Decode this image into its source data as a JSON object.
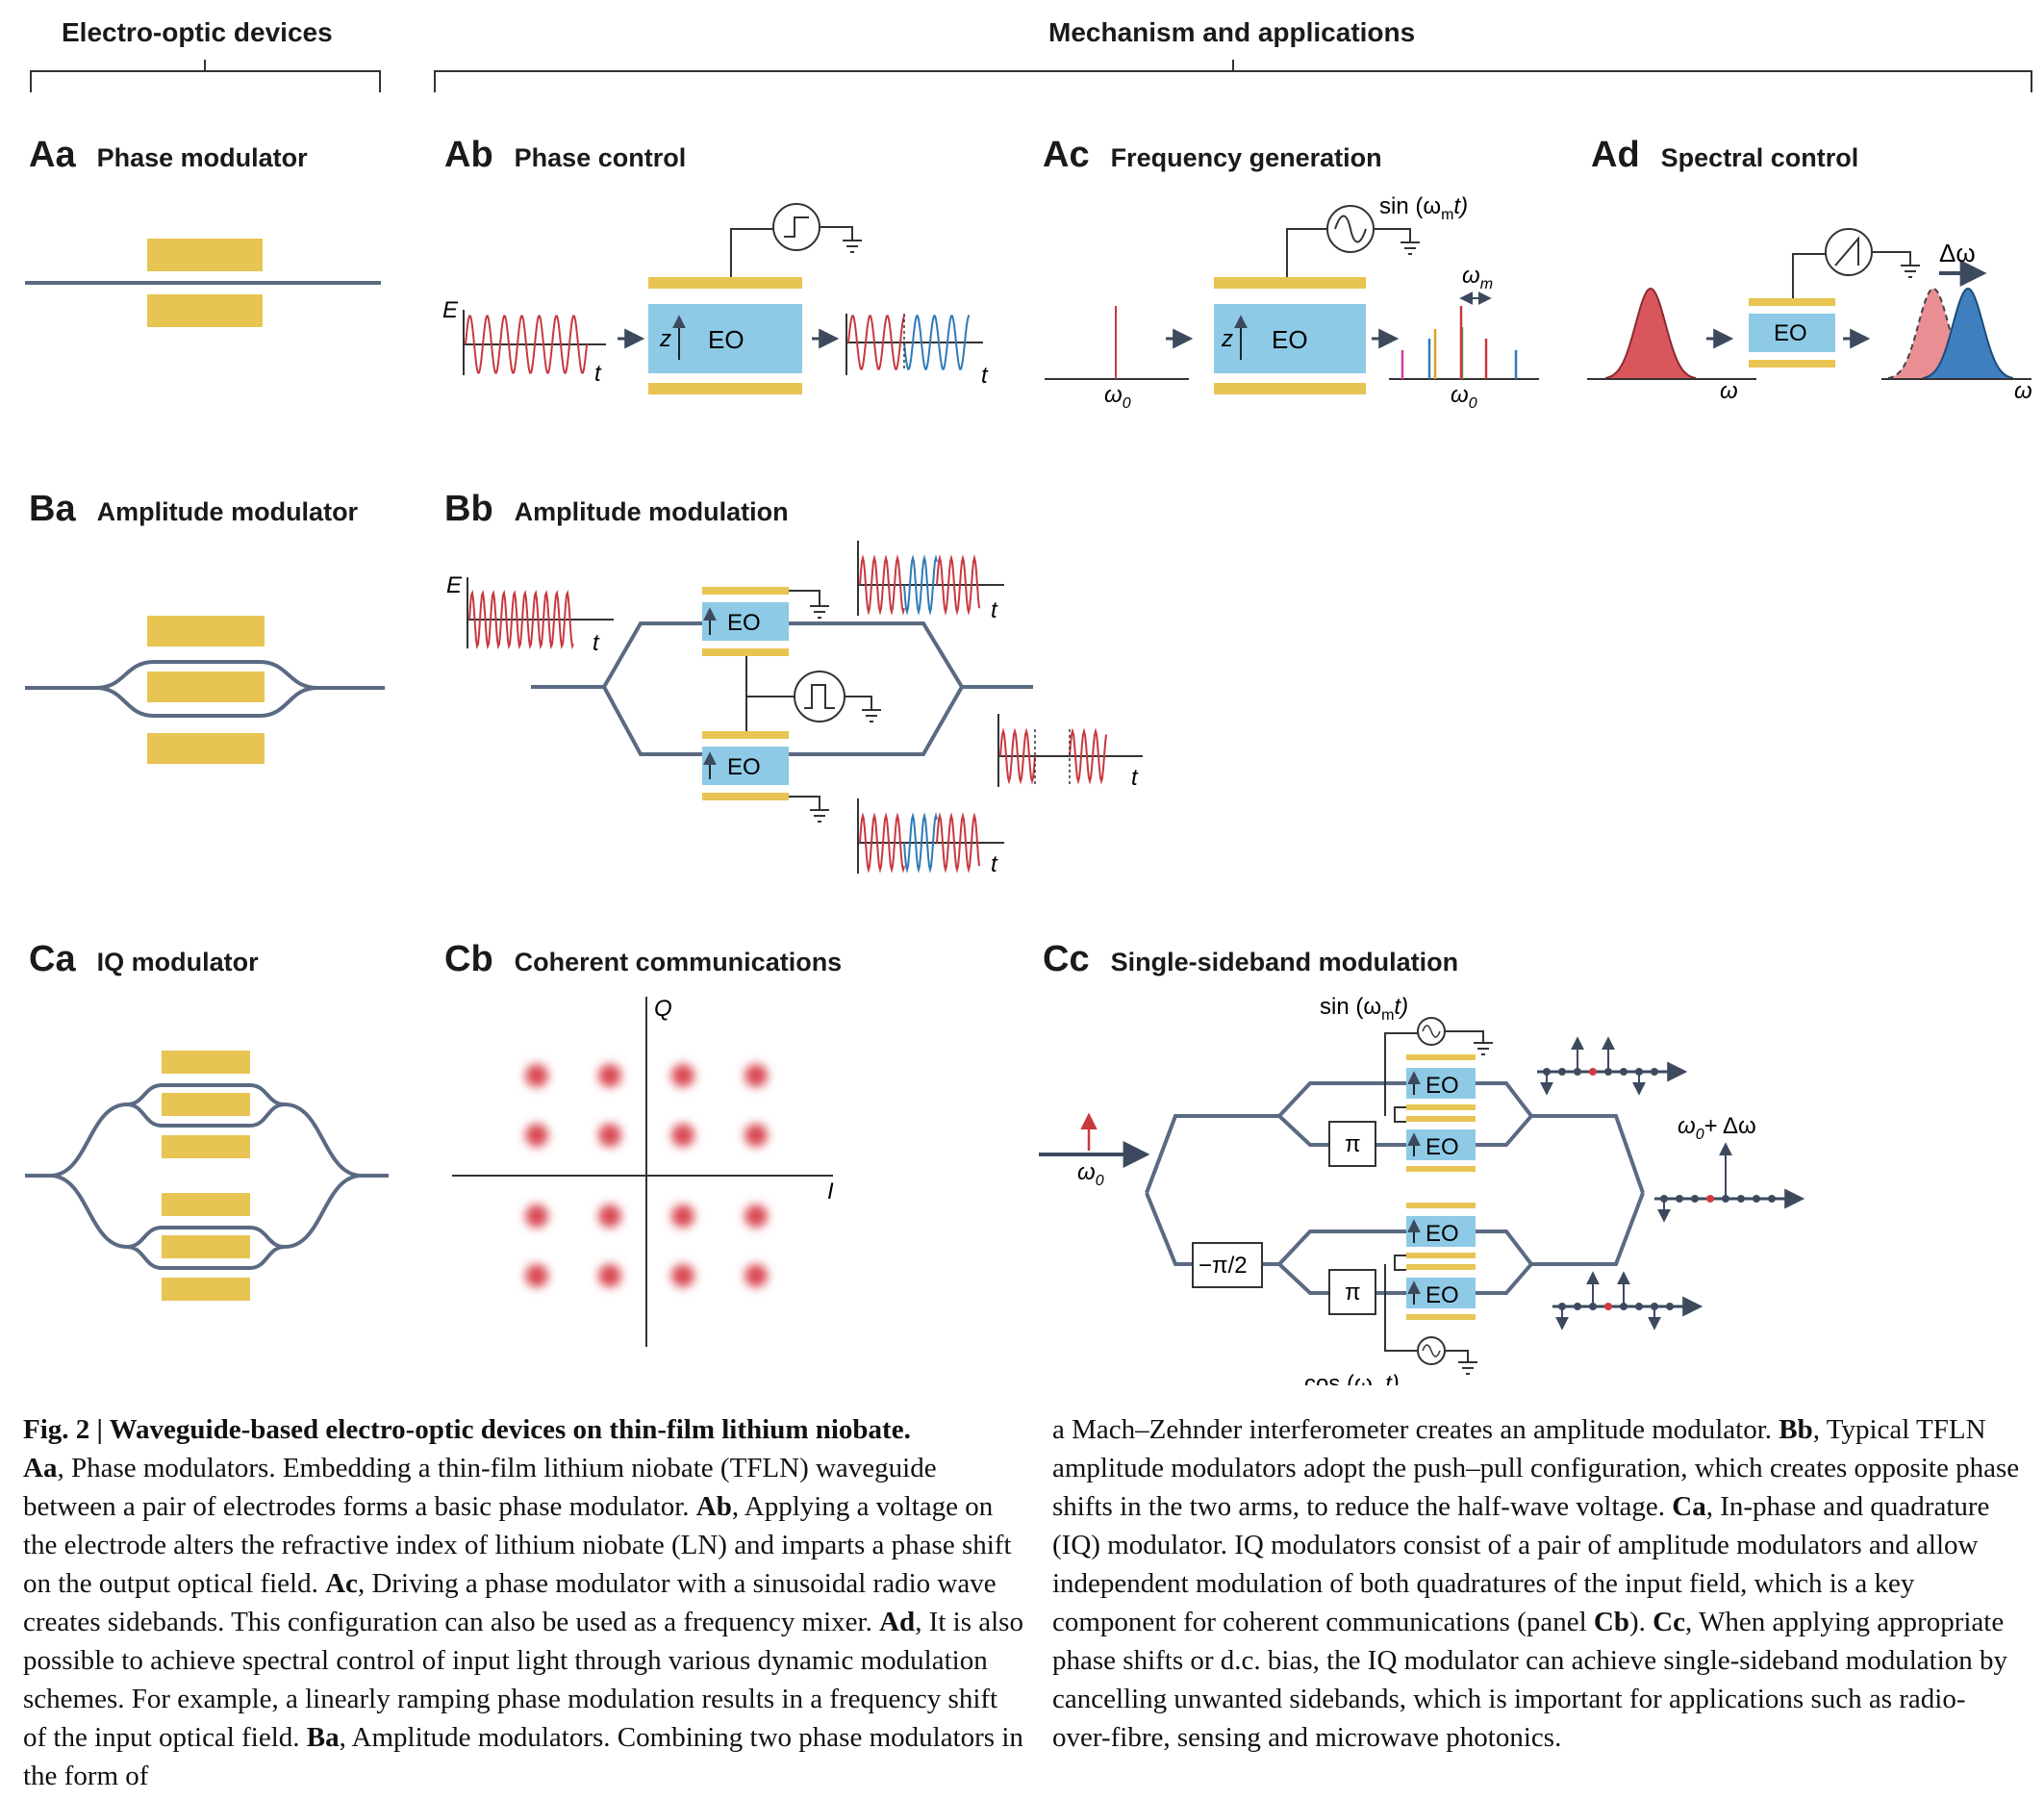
{
  "headers": {
    "left": "Electro-optic devices",
    "right": "Mechanism and applications"
  },
  "panels": [
    {
      "id": "Aa",
      "code": "Aa",
      "title": "Phase modulator"
    },
    {
      "id": "Ab",
      "code": "Ab",
      "title": "Phase control"
    },
    {
      "id": "Ac",
      "code": "Ac",
      "title": "Frequency generation"
    },
    {
      "id": "Ad",
      "code": "Ad",
      "title": "Spectral control"
    },
    {
      "id": "Ba",
      "code": "Ba",
      "title": "Amplitude modulator"
    },
    {
      "id": "Bb",
      "code": "Bb",
      "title": "Amplitude modulation"
    },
    {
      "id": "Ca",
      "code": "Ca",
      "title": "IQ modulator"
    },
    {
      "id": "Cb",
      "code": "Cb",
      "title": "Coherent communications"
    },
    {
      "id": "Cc",
      "code": "Cc",
      "title": "Single-sideband modulation"
    }
  ],
  "labels": {
    "eo": "EO",
    "e_axis": "E",
    "t_axis": "t",
    "z_axis": "z",
    "omega": "ω",
    "omega0": "ω",
    "sub0": "0",
    "sub_m": "m",
    "sin_prefix": "sin (ω",
    "cos_prefix": "cos (ω",
    "func_suffix": "t)",
    "delta_omega": "Δω",
    "omega0_plus": "+ Δω",
    "q_axis": "Q",
    "i_axis": "I",
    "pi": "π",
    "minus_pi_half": "−π/2"
  },
  "colors": {
    "waveguide": "#5a6a82",
    "electrode": "#e8c452",
    "eo_block": "#8ecae6",
    "red": "#c8383f",
    "blue": "#2f7ab8",
    "pink": "#e0868a",
    "dot": "#d94a52"
  },
  "caption": {
    "left": [
      {
        "b": "Fig. 2 | Waveguide-based electro-optic devices on thin-film lithium niobate.",
        "t": ""
      },
      {
        "b": "Aa",
        "t": ", Phase modulators. Embedding a thin-film lithium niobate (TFLN) waveguide between a pair of electrodes forms a basic phase modulator. "
      },
      {
        "b": "Ab",
        "t": ", Applying a voltage on the electrode alters the refractive index of lithium niobate (LN) and imparts a phase shift on the output optical field. "
      },
      {
        "b": "Ac",
        "t": ", Driving a phase modulator with a sinusoidal radio wave creates sidebands. This configuration can also be used as a frequency mixer. "
      },
      {
        "b": "Ad",
        "t": ", It is also possible to achieve spectral control of input light through various dynamic modulation schemes. For example, a linearly ramping phase modulation results in a frequency shift of the input optical field. "
      },
      {
        "b": "Ba",
        "t": ", Amplitude modulators. Combining two phase modulators in the form of"
      }
    ],
    "right": [
      {
        "b": "",
        "t": "a Mach–Zehnder interferometer creates an amplitude modulator. "
      },
      {
        "b": "Bb",
        "t": ", Typical TFLN amplitude modulators adopt the push–pull configuration, which creates opposite phase shifts in the two arms, to reduce the half-wave voltage. "
      },
      {
        "b": "Ca",
        "t": ", In-phase and quadrature (IQ) modulator. IQ modulators consist of a pair of amplitude modulators and allow independent modulation of both quadratures of the input field, which is a key component for coherent communications (panel "
      },
      {
        "b": "Cb",
        "t": "). "
      },
      {
        "b": "Cc",
        "t": ", When applying appropriate phase shifts or d.c. bias, the IQ modulator can achieve single-sideband modulation by cancelling unwanted sidebands, which is important for applications such as radio-over-fibre, sensing and microwave photonics."
      }
    ]
  }
}
